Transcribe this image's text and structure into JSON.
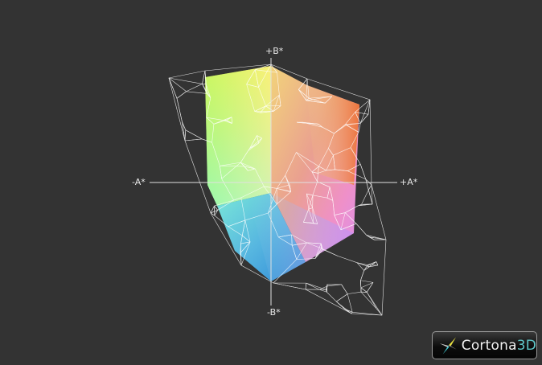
{
  "axes": {
    "b_plus": "+B*",
    "b_minus": "-B*",
    "a_minus": "-A*",
    "a_plus": "+A*"
  },
  "logo": {
    "name": "Cortona",
    "suffix": "3D"
  },
  "colors": {
    "background": "#333333",
    "wireframe": "#ffffff",
    "axis": "#e0e0e0",
    "logo_accent": "#5fc6c8"
  }
}
